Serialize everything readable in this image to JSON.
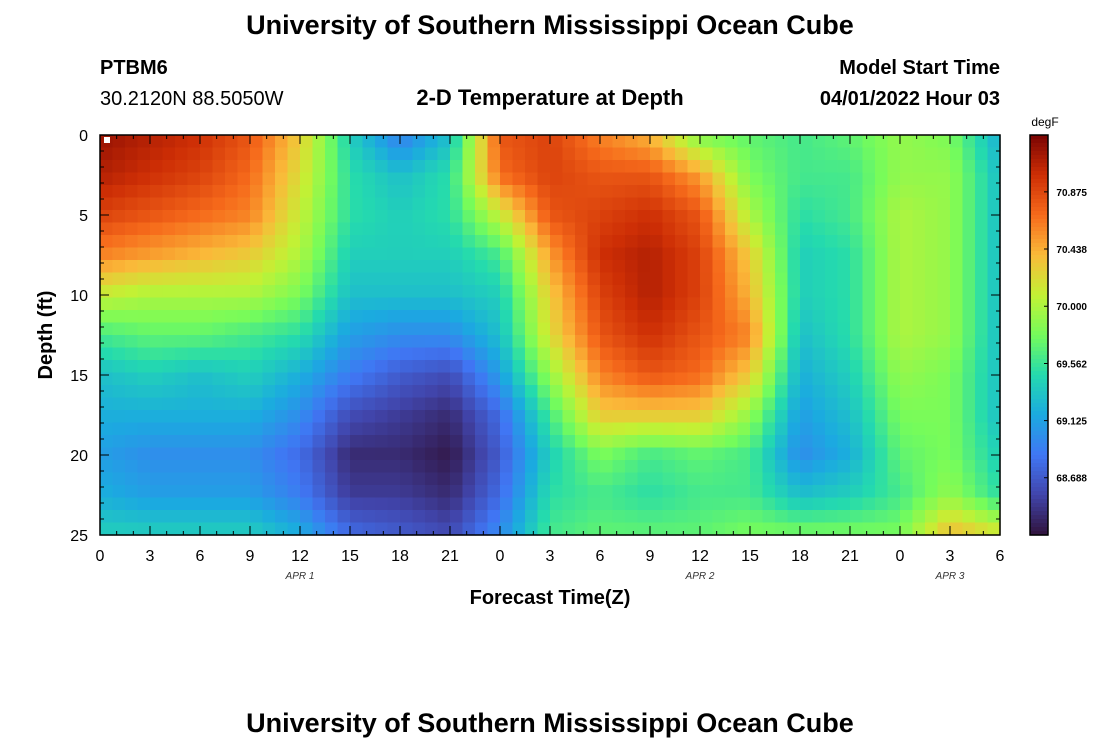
{
  "header": {
    "title": "University of Southern Mississippi Ocean Cube",
    "station": "PTBM6",
    "coords": "30.2120N  88.5050W",
    "subtitle": "2-D Temperature at Depth",
    "start_label": "Model Start Time",
    "start_value": "04/01/2022 Hour 03"
  },
  "footer": {
    "title": "University of Southern Mississippi Ocean Cube"
  },
  "chart_data": {
    "type": "heatmap",
    "title": "2-D Temperature at Depth",
    "xlabel": "Forecast Time(Z)",
    "ylabel": "Depth (ft)",
    "x_range_hours": [
      0,
      54
    ],
    "y_range": [
      0,
      25
    ],
    "x_ticks": [
      {
        "h": 0,
        "label": "0"
      },
      {
        "h": 3,
        "label": "3"
      },
      {
        "h": 6,
        "label": "6"
      },
      {
        "h": 9,
        "label": "9"
      },
      {
        "h": 12,
        "label": "12"
      },
      {
        "h": 15,
        "label": "15"
      },
      {
        "h": 18,
        "label": "18"
      },
      {
        "h": 21,
        "label": "21"
      },
      {
        "h": 24,
        "label": "0"
      },
      {
        "h": 27,
        "label": "3"
      },
      {
        "h": 30,
        "label": "6"
      },
      {
        "h": 33,
        "label": "9"
      },
      {
        "h": 36,
        "label": "12"
      },
      {
        "h": 39,
        "label": "15"
      },
      {
        "h": 42,
        "label": "18"
      },
      {
        "h": 45,
        "label": "21"
      },
      {
        "h": 48,
        "label": "0"
      },
      {
        "h": 51,
        "label": "3"
      },
      {
        "h": 54,
        "label": "6"
      }
    ],
    "y_ticks": [
      0,
      5,
      10,
      15,
      20,
      25
    ],
    "date_labels": [
      {
        "h": 12,
        "label": "APR 1"
      },
      {
        "h": 36,
        "label": "APR 2"
      },
      {
        "h": 51,
        "label": "APR 3"
      }
    ],
    "colorbar": {
      "unit": "degF",
      "min": 68.25,
      "max": 71.31,
      "ticks": [
        70.875,
        70.438,
        70.0,
        69.562,
        69.125,
        68.688
      ]
    },
    "depths_ft": [
      0,
      2.5,
      5,
      7.5,
      10,
      12.5,
      15,
      17.5,
      20,
      22.5,
      25
    ],
    "hours": [
      0,
      3,
      6,
      9,
      12,
      15,
      18,
      21,
      24,
      27,
      30,
      33,
      36,
      39,
      42,
      45,
      48,
      51,
      54
    ],
    "values_degF": [
      [
        71.2,
        71.1,
        71.0,
        70.8,
        70.3,
        69.4,
        68.9,
        69.3,
        70.8,
        70.9,
        70.6,
        70.4,
        69.8,
        69.7,
        69.6,
        69.7,
        69.9,
        69.8,
        69.2
      ],
      [
        71.1,
        71.0,
        70.9,
        70.7,
        70.2,
        69.5,
        69.3,
        69.5,
        70.7,
        70.9,
        70.8,
        70.8,
        70.5,
        69.8,
        69.6,
        69.6,
        69.9,
        69.9,
        69.3
      ],
      [
        70.9,
        70.8,
        70.7,
        70.6,
        70.1,
        69.5,
        69.4,
        69.5,
        70.1,
        70.8,
        70.9,
        71.0,
        70.8,
        70.0,
        69.5,
        69.6,
        70.0,
        69.9,
        69.3
      ],
      [
        70.6,
        70.5,
        70.4,
        70.3,
        70.0,
        69.4,
        69.4,
        69.4,
        69.6,
        70.5,
        71.0,
        71.1,
        70.9,
        70.3,
        69.4,
        69.5,
        70.0,
        69.9,
        69.3
      ],
      [
        70.1,
        70.0,
        70.0,
        70.0,
        69.8,
        69.3,
        69.3,
        69.3,
        69.4,
        70.3,
        70.9,
        71.1,
        70.9,
        70.4,
        69.4,
        69.5,
        70.0,
        69.9,
        69.3
      ],
      [
        69.6,
        69.7,
        69.7,
        69.6,
        69.5,
        69.1,
        69.0,
        69.0,
        69.3,
        70.2,
        70.8,
        71.0,
        70.8,
        70.6,
        69.3,
        69.5,
        70.0,
        69.9,
        69.3
      ],
      [
        69.3,
        69.4,
        69.3,
        69.4,
        69.2,
        68.9,
        68.7,
        68.6,
        69.1,
        69.9,
        70.6,
        70.8,
        70.7,
        70.3,
        69.2,
        69.4,
        69.9,
        69.8,
        69.3
      ],
      [
        69.2,
        69.2,
        69.2,
        69.2,
        69.0,
        68.6,
        68.5,
        68.4,
        68.8,
        69.6,
        70.3,
        70.3,
        70.3,
        69.9,
        69.1,
        69.3,
        69.8,
        69.8,
        69.3
      ],
      [
        69.1,
        69.0,
        69.0,
        69.0,
        68.8,
        68.4,
        68.4,
        68.3,
        68.7,
        69.4,
        69.8,
        69.6,
        69.7,
        69.6,
        69.0,
        69.2,
        69.7,
        69.8,
        69.4
      ],
      [
        69.2,
        69.1,
        69.1,
        69.1,
        68.9,
        68.5,
        68.5,
        68.4,
        68.8,
        69.5,
        69.6,
        69.5,
        69.6,
        69.6,
        69.3,
        69.4,
        69.6,
        69.9,
        69.5
      ],
      [
        69.4,
        69.4,
        69.4,
        69.4,
        69.2,
        68.8,
        68.7,
        68.6,
        69.0,
        69.6,
        69.7,
        69.7,
        69.7,
        69.8,
        69.8,
        69.8,
        69.8,
        70.4,
        70.2
      ]
    ]
  }
}
